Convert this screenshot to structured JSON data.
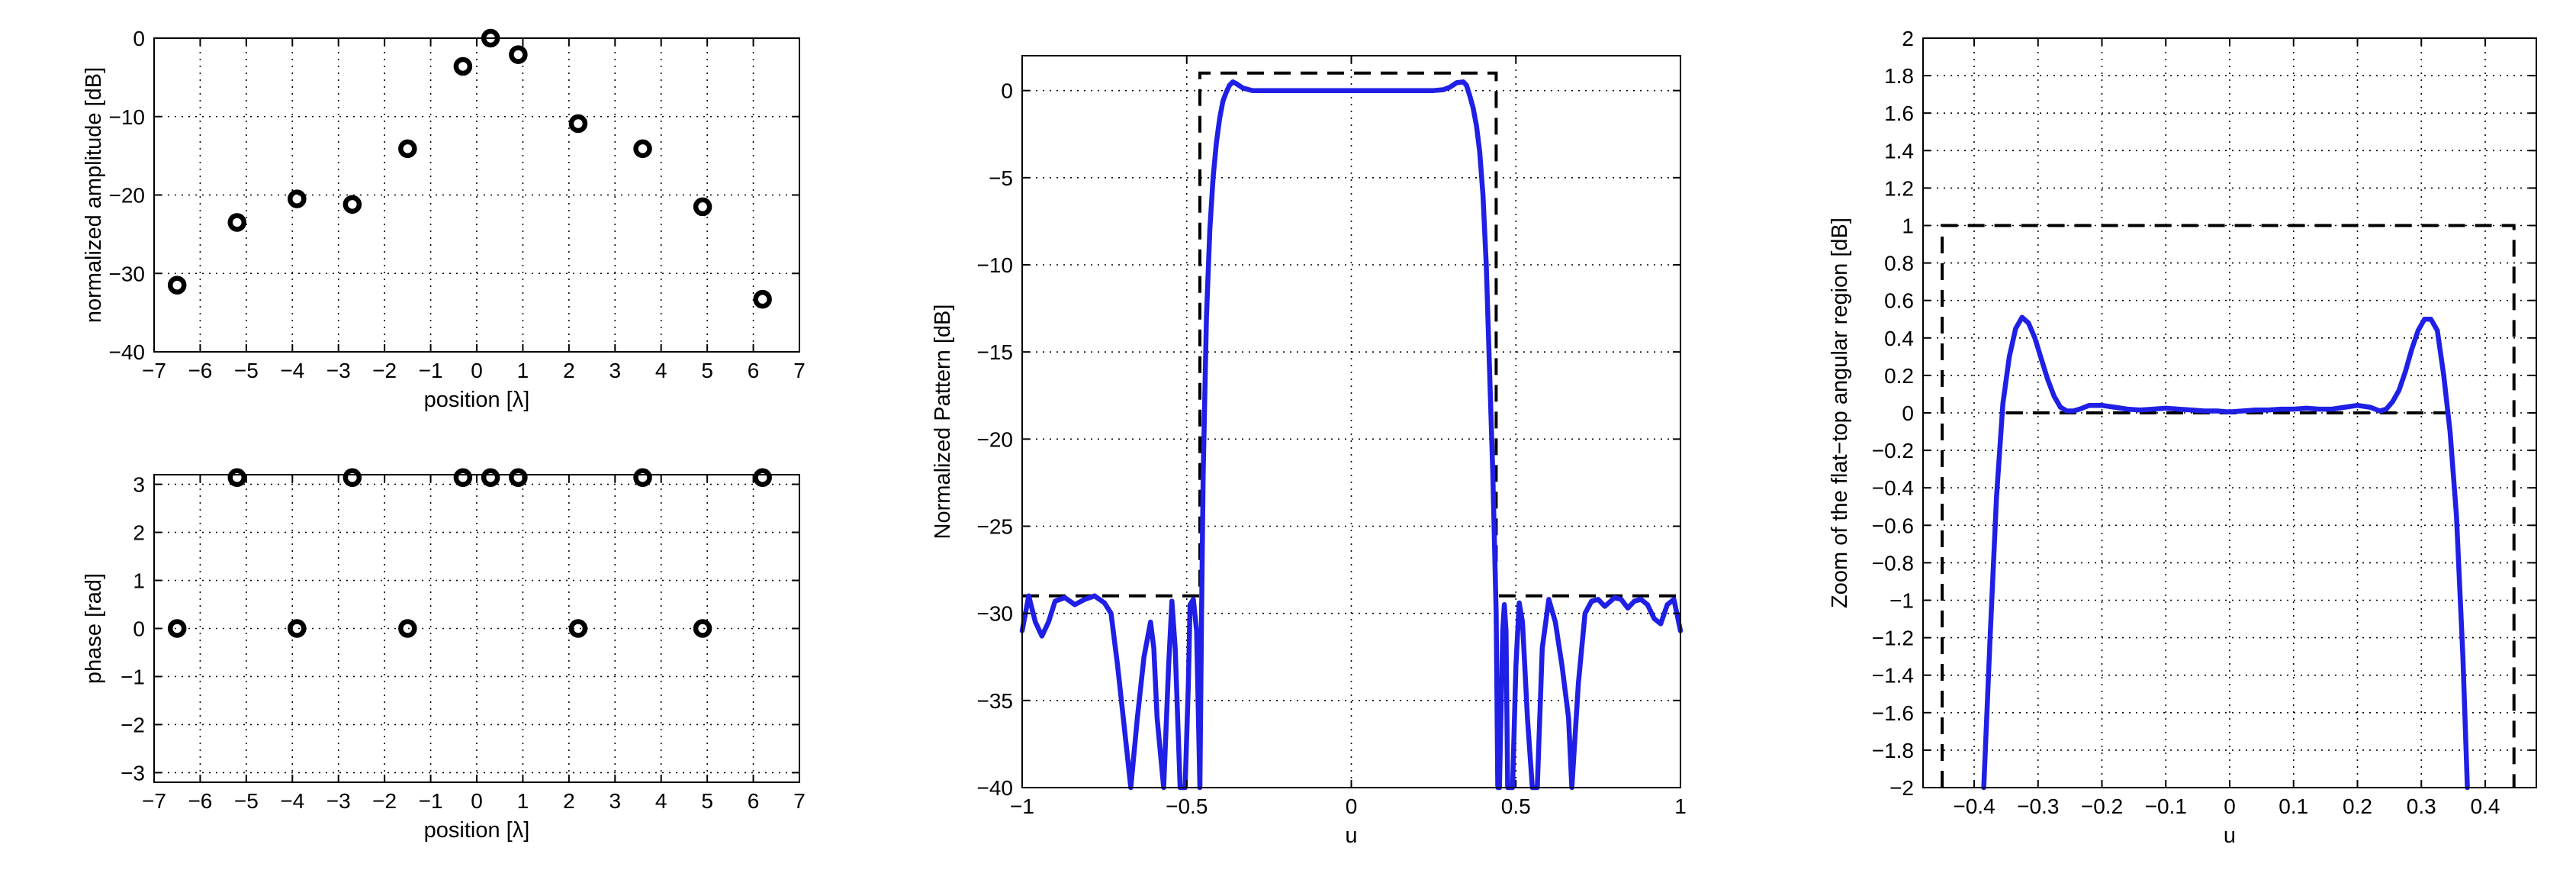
{
  "chart_data": [
    {
      "id": "amp",
      "type": "scatter",
      "xlabel": "position [λ]",
      "ylabel": "normalized amplitude [dB]",
      "xlim": [
        -7,
        7
      ],
      "ylim": [
        -40,
        0
      ],
      "xticks": [
        -7,
        -6,
        -5,
        -4,
        -3,
        -2,
        -1,
        0,
        1,
        2,
        3,
        4,
        5,
        6,
        7
      ],
      "yticks": [
        0,
        -10,
        -20,
        -30,
        -40
      ],
      "grid": true,
      "series": [
        {
          "x": [
            -6.5,
            -5.2,
            -3.9,
            -2.7,
            -1.5,
            -0.3,
            0.3,
            0.9,
            2.2,
            3.6,
            4.9,
            6.2
          ],
          "y": [
            -31.5,
            -23.5,
            -20.5,
            -21.2,
            -14.1,
            -3.6,
            0,
            -2.1,
            -10.9,
            -14.1,
            -21.5,
            -33.3
          ]
        }
      ]
    },
    {
      "id": "phase",
      "type": "scatter",
      "xlabel": "position [λ]",
      "ylabel": "phase [rad]",
      "xlim": [
        -7,
        7
      ],
      "ylim": [
        -3.2,
        3.2
      ],
      "xticks": [
        -7,
        -6,
        -5,
        -4,
        -3,
        -2,
        -1,
        0,
        1,
        2,
        3,
        4,
        5,
        6,
        7
      ],
      "yticks": [
        3,
        2,
        1,
        0,
        -1,
        -2,
        -3
      ],
      "grid": true,
      "series": [
        {
          "x": [
            -6.5,
            -5.2,
            -3.9,
            -2.7,
            -1.5,
            -0.3,
            0.3,
            0.9,
            2.2,
            3.6,
            4.9,
            6.2
          ],
          "y": [
            0,
            3.14,
            0,
            3.14,
            0,
            3.14,
            3.14,
            3.14,
            0,
            3.14,
            0,
            3.14
          ]
        }
      ]
    },
    {
      "id": "pattern",
      "type": "line",
      "xlabel": "u",
      "ylabel": "Normalized Pattern [dB]",
      "xlim": [
        -1,
        1
      ],
      "ylim": [
        -40,
        2
      ],
      "xticks": [
        -1,
        -0.5,
        0,
        0.5,
        1
      ],
      "yticks": [
        0,
        -5,
        -10,
        -15,
        -20,
        -25,
        -30,
        -35,
        -40
      ],
      "grid": true,
      "series": [
        {
          "style": "dashed-mask",
          "x": [
            -1,
            -0.46,
            -0.46,
            0.44,
            0.44,
            1
          ],
          "y": [
            -29,
            -29,
            1,
            1,
            -29,
            -29
          ]
        },
        {
          "style": "pattern",
          "x": [
            -1,
            -0.98,
            -0.96,
            -0.94,
            -0.92,
            -0.9,
            -0.87,
            -0.84,
            -0.81,
            -0.78,
            -0.75,
            -0.73,
            -0.71,
            -0.69,
            -0.67,
            -0.65,
            -0.63,
            -0.61,
            -0.6,
            -0.59,
            -0.57,
            -0.555,
            -0.545,
            -0.535,
            -0.52,
            -0.505,
            -0.495,
            -0.49,
            -0.48,
            -0.47,
            -0.46,
            -0.455,
            -0.45,
            -0.44,
            -0.43,
            -0.42,
            -0.41,
            -0.4,
            -0.39,
            -0.38,
            -0.37,
            -0.36,
            -0.35,
            -0.33,
            -0.3,
            -0.25,
            -0.2,
            -0.15,
            -0.1,
            -0.05,
            0,
            0.05,
            0.1,
            0.15,
            0.2,
            0.25,
            0.28,
            0.3,
            0.32,
            0.34,
            0.35,
            0.36,
            0.37,
            0.38,
            0.39,
            0.4,
            0.41,
            0.42,
            0.43,
            0.44,
            0.445,
            0.45,
            0.46,
            0.465,
            0.47,
            0.475,
            0.49,
            0.5,
            0.51,
            0.52,
            0.535,
            0.55,
            0.565,
            0.58,
            0.6,
            0.62,
            0.64,
            0.66,
            0.67,
            0.69,
            0.71,
            0.73,
            0.75,
            0.77,
            0.8,
            0.82,
            0.84,
            0.86,
            0.88,
            0.9,
            0.92,
            0.94,
            0.96,
            0.98,
            1
          ],
          "y": [
            -31,
            -29,
            -30.5,
            -31.3,
            -30.5,
            -29.3,
            -29.1,
            -29.5,
            -29.2,
            -29,
            -29.4,
            -30,
            -33,
            -36.5,
            -40,
            -36,
            -32.5,
            -30.5,
            -32,
            -36,
            -40,
            -33,
            -29.3,
            -32,
            -40,
            -40,
            -34,
            -29.5,
            -29.2,
            -31,
            -40,
            -30,
            -22,
            -13,
            -8,
            -5,
            -3,
            -1.6,
            -0.6,
            -0.1,
            0.3,
            0.5,
            0.4,
            0.15,
            0,
            0,
            0,
            0,
            0,
            0,
            0,
            0,
            0,
            0,
            0,
            0,
            0.05,
            0.2,
            0.45,
            0.5,
            0.3,
            -0.3,
            -1,
            -2,
            -3.5,
            -6,
            -10,
            -16,
            -22,
            -30,
            -40,
            -40,
            -31,
            -29.5,
            -31,
            -40,
            -40,
            -33,
            -29.4,
            -30.5,
            -36,
            -40,
            -40,
            -32,
            -29.2,
            -30.5,
            -33,
            -36,
            -40,
            -34,
            -30,
            -29.3,
            -29.2,
            -29.6,
            -29.1,
            -29.2,
            -29.7,
            -29.3,
            -29.2,
            -29.5,
            -30.3,
            -30.6,
            -29.5,
            -29.2,
            -31
          ]
        }
      ]
    },
    {
      "id": "zoom",
      "type": "line",
      "xlabel": "u",
      "ylabel": "Zoom of the flat−top angular region [dB]",
      "xlim": [
        -0.48,
        0.48
      ],
      "ylim": [
        -2,
        2
      ],
      "xticks": [
        -0.4,
        -0.3,
        -0.2,
        -0.1,
        0,
        0.1,
        0.2,
        0.3,
        0.4
      ],
      "yticks": [
        2,
        1.8,
        1.6,
        1.4,
        1.2,
        1,
        0.8,
        0.6,
        0.4,
        0.2,
        0,
        -0.2,
        -0.4,
        -0.6,
        -0.8,
        -1,
        -1.2,
        -1.4,
        -1.6,
        -1.8,
        -2
      ],
      "grid": true,
      "series": [
        {
          "style": "dashed-mask",
          "x": [
            -0.45,
            -0.45,
            0.445,
            0.445
          ],
          "y": [
            -2,
            1,
            1,
            -2
          ]
        },
        {
          "style": "dashed-floor",
          "x": [
            -0.35,
            0.345
          ],
          "y": [
            0,
            0
          ]
        },
        {
          "style": "pattern",
          "x": [
            -0.385,
            -0.375,
            -0.365,
            -0.355,
            -0.345,
            -0.335,
            -0.325,
            -0.315,
            -0.305,
            -0.295,
            -0.285,
            -0.275,
            -0.265,
            -0.255,
            -0.245,
            -0.235,
            -0.22,
            -0.2,
            -0.18,
            -0.16,
            -0.14,
            -0.12,
            -0.1,
            -0.08,
            -0.06,
            -0.04,
            -0.02,
            0,
            0.02,
            0.04,
            0.06,
            0.08,
            0.1,
            0.12,
            0.14,
            0.16,
            0.18,
            0.2,
            0.22,
            0.235,
            0.245,
            0.255,
            0.265,
            0.275,
            0.285,
            0.295,
            0.305,
            0.315,
            0.325,
            0.335,
            0.345,
            0.355,
            0.365,
            0.372
          ],
          "y": [
            -2,
            -1.2,
            -0.45,
            0.05,
            0.3,
            0.45,
            0.51,
            0.48,
            0.4,
            0.29,
            0.18,
            0.09,
            0.03,
            0.01,
            0.01,
            0.02,
            0.04,
            0.04,
            0.03,
            0.02,
            0.015,
            0.02,
            0.025,
            0.02,
            0.015,
            0.01,
            0.01,
            0.005,
            0.01,
            0.015,
            0.015,
            0.02,
            0.02,
            0.025,
            0.02,
            0.02,
            0.03,
            0.04,
            0.03,
            0.01,
            0.02,
            0.06,
            0.12,
            0.22,
            0.34,
            0.44,
            0.5,
            0.5,
            0.44,
            0.2,
            -0.1,
            -0.55,
            -1.3,
            -2
          ]
        }
      ]
    }
  ]
}
